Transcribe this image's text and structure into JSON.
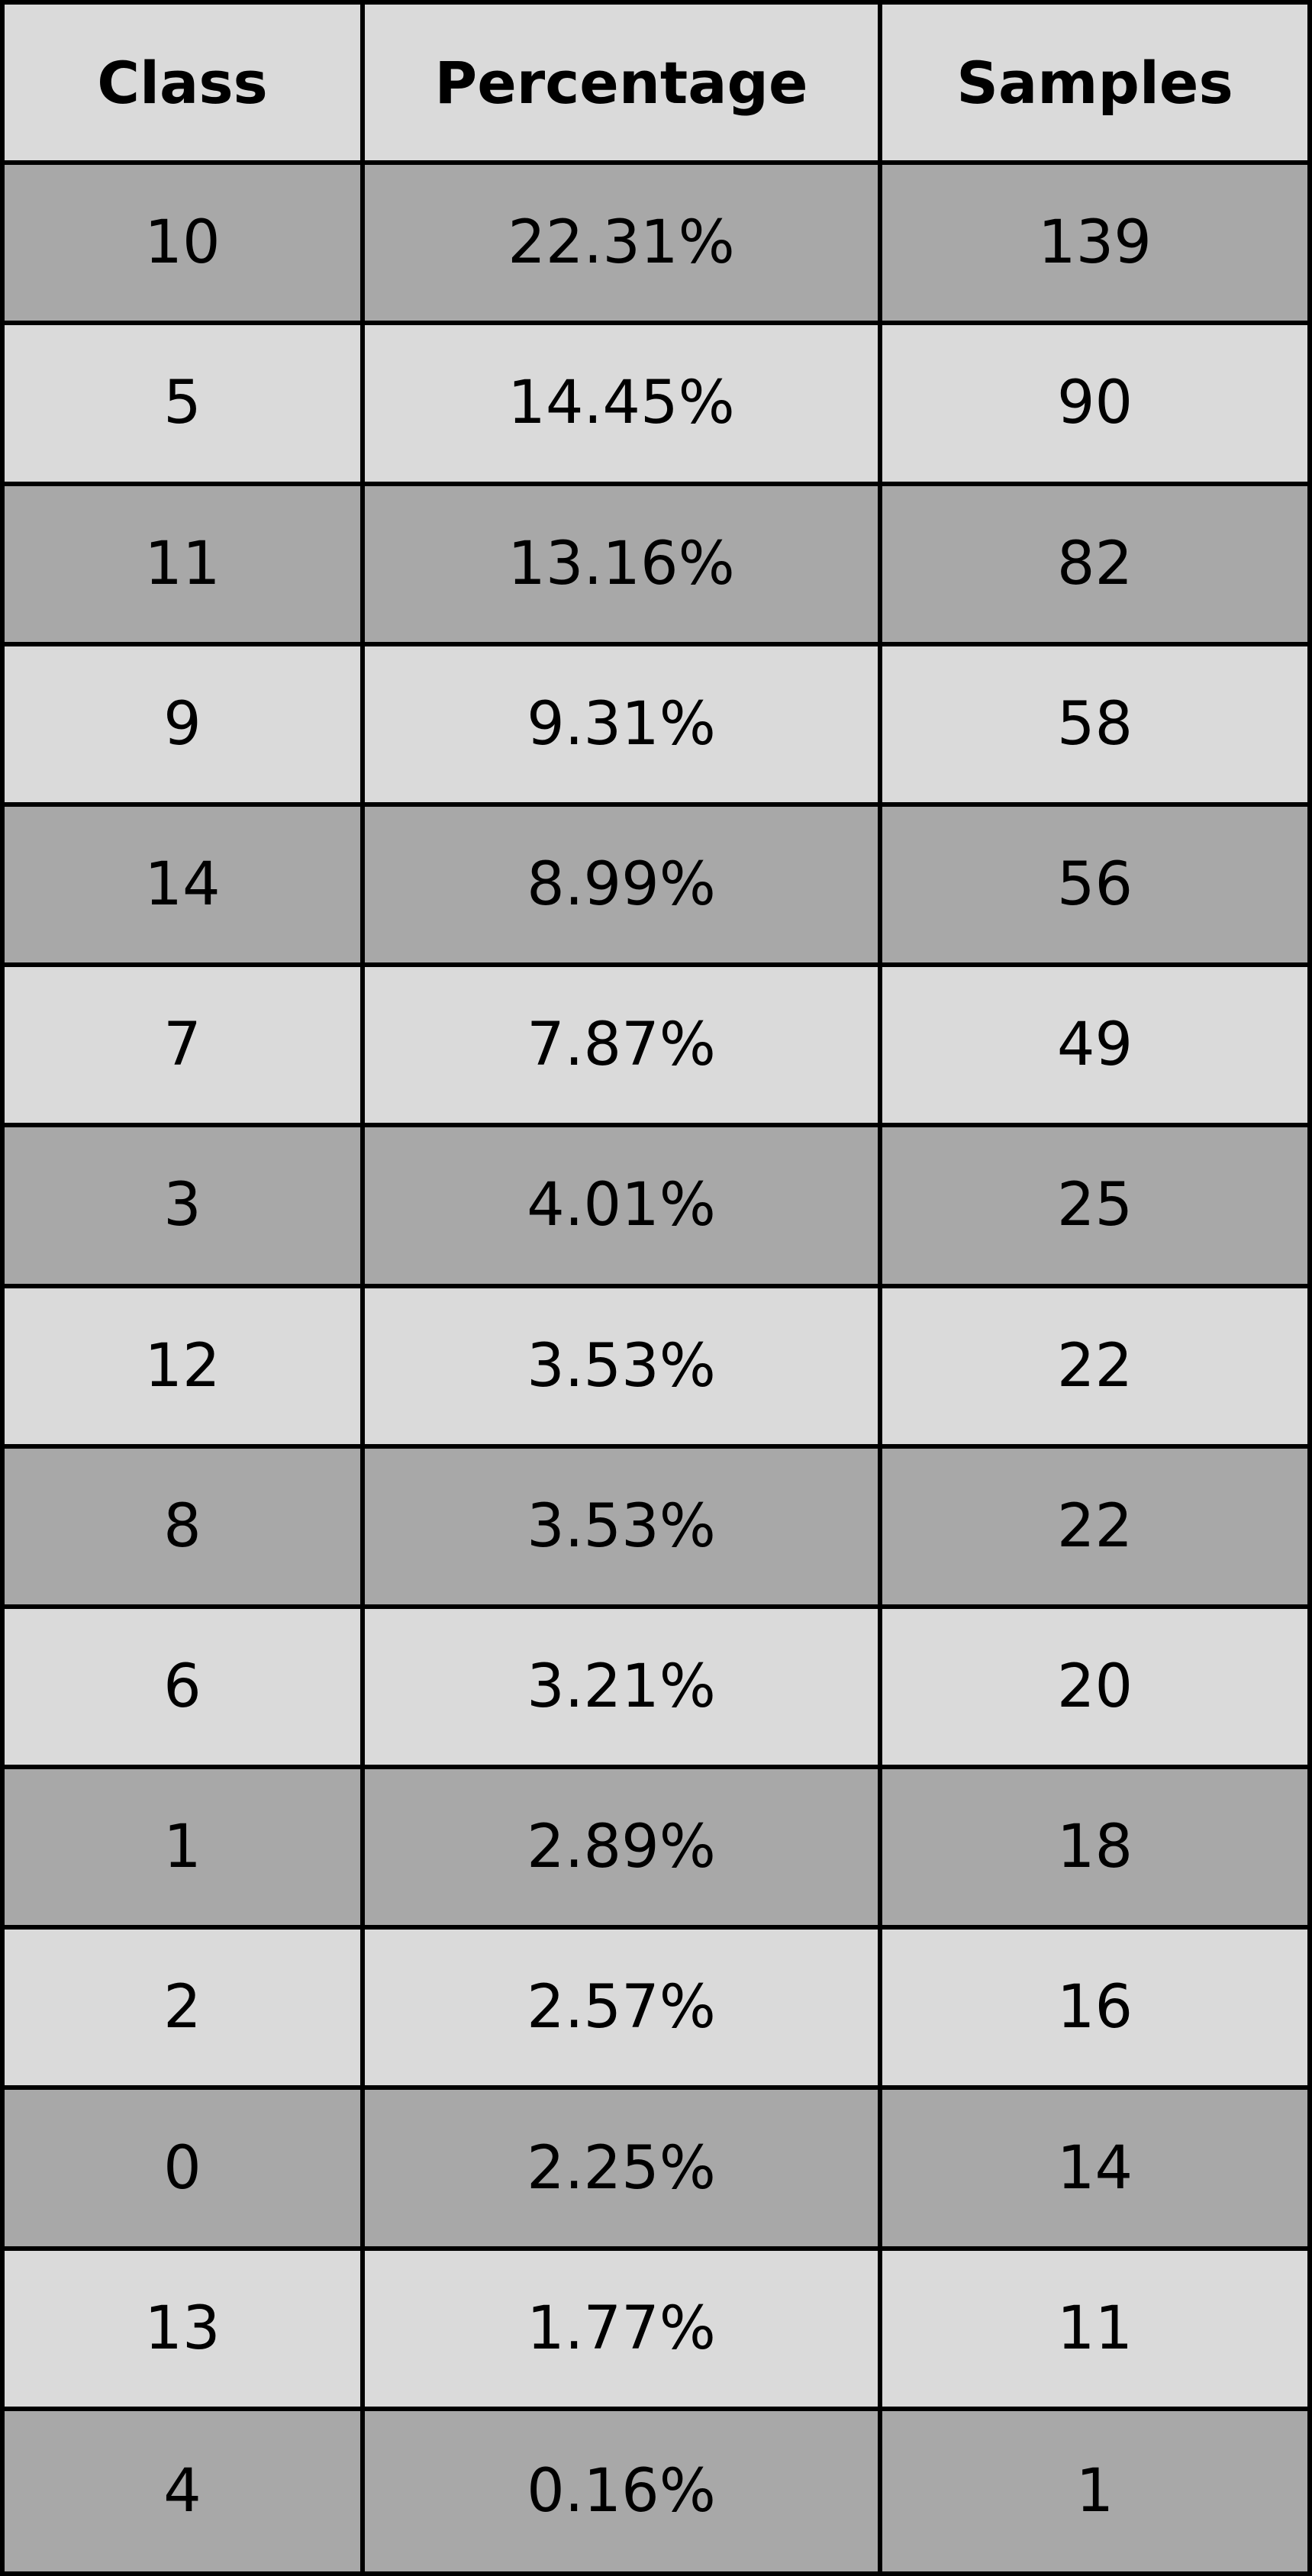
{
  "table": {
    "headers": [
      "Class",
      "Percentage",
      "Samples"
    ],
    "rows": [
      {
        "class": "10",
        "percentage": "22.31%",
        "samples": "139"
      },
      {
        "class": "5",
        "percentage": "14.45%",
        "samples": "90"
      },
      {
        "class": "11",
        "percentage": "13.16%",
        "samples": "82"
      },
      {
        "class": "9",
        "percentage": "9.31%",
        "samples": "58"
      },
      {
        "class": "14",
        "percentage": "8.99%",
        "samples": "56"
      },
      {
        "class": "7",
        "percentage": "7.87%",
        "samples": "49"
      },
      {
        "class": "3",
        "percentage": "4.01%",
        "samples": "25"
      },
      {
        "class": "12",
        "percentage": "3.53%",
        "samples": "22"
      },
      {
        "class": "8",
        "percentage": "3.53%",
        "samples": "22"
      },
      {
        "class": "6",
        "percentage": "3.21%",
        "samples": "20"
      },
      {
        "class": "1",
        "percentage": "2.89%",
        "samples": "18"
      },
      {
        "class": "2",
        "percentage": "2.57%",
        "samples": "16"
      },
      {
        "class": "0",
        "percentage": "2.25%",
        "samples": "14"
      },
      {
        "class": "13",
        "percentage": "1.77%",
        "samples": "11"
      },
      {
        "class": "4",
        "percentage": "0.16%",
        "samples": "1"
      }
    ]
  },
  "colors": {
    "header_bg": "#dadada",
    "row_light": "#dadada",
    "row_dark": "#a8a8a8",
    "border": "#000000"
  }
}
